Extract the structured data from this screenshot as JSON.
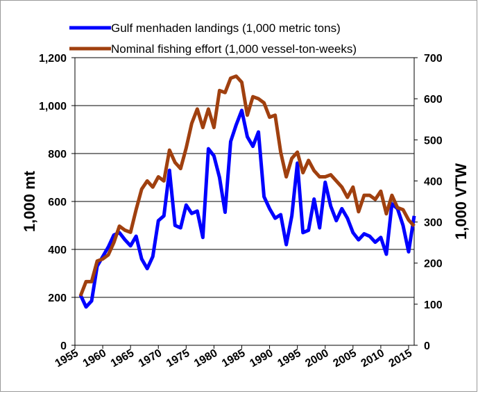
{
  "chart_data": {
    "type": "line",
    "x": [
      1956,
      1957,
      1958,
      1959,
      1960,
      1961,
      1962,
      1963,
      1964,
      1965,
      1966,
      1967,
      1968,
      1969,
      1970,
      1971,
      1972,
      1973,
      1974,
      1975,
      1976,
      1977,
      1978,
      1979,
      1980,
      1981,
      1982,
      1983,
      1984,
      1985,
      1986,
      1987,
      1988,
      1989,
      1990,
      1991,
      1992,
      1993,
      1994,
      1995,
      1996,
      1997,
      1998,
      1999,
      2000,
      2001,
      2002,
      2003,
      2004,
      2005,
      2006,
      2007,
      2008,
      2009,
      2010,
      2011,
      2012,
      2013,
      2014,
      2015,
      2016
    ],
    "series": [
      {
        "name": "Gulf menhaden landings (1,000  metric tons)",
        "color": "#0000ff",
        "values": [
          210,
          160,
          185,
          330,
          370,
          410,
          460,
          470,
          440,
          415,
          455,
          360,
          320,
          370,
          520,
          540,
          730,
          500,
          490,
          585,
          550,
          560,
          450,
          820,
          790,
          700,
          555,
          850,
          920,
          980,
          870,
          830,
          890,
          620,
          570,
          530,
          545,
          420,
          540,
          760,
          470,
          480,
          610,
          490,
          680,
          580,
          520,
          570,
          530,
          470,
          440,
          465,
          455,
          430,
          450,
          380,
          590,
          570,
          500,
          390,
          540
        ]
      },
      {
        "name": "Nominal fishing effort (1,000 vessel-ton-weeks)",
        "color": "#a0400f",
        "axis": "y2",
        "values": [
          120,
          155,
          155,
          205,
          210,
          220,
          250,
          290,
          280,
          275,
          330,
          380,
          400,
          385,
          410,
          400,
          475,
          445,
          430,
          480,
          540,
          575,
          530,
          575,
          530,
          620,
          615,
          650,
          655,
          640,
          560,
          605,
          600,
          590,
          555,
          560,
          470,
          410,
          455,
          470,
          420,
          450,
          425,
          410,
          410,
          415,
          400,
          385,
          360,
          385,
          325,
          365,
          365,
          355,
          375,
          320,
          365,
          335,
          330,
          305,
          290
        ]
      }
    ],
    "xlim": [
      1955,
      2016
    ],
    "xticks": [
      1955,
      1960,
      1965,
      1970,
      1975,
      1980,
      1985,
      1990,
      1995,
      2000,
      2005,
      2010,
      2015
    ],
    "ylim": [
      0,
      1200
    ],
    "yticks": [
      0,
      200,
      400,
      600,
      800,
      {
        "value": 1000,
        "label": "1,000"
      },
      {
        "value": 1200,
        "label": "1,200"
      }
    ],
    "y2lim": [
      0,
      700
    ],
    "y2ticks": [
      0,
      100,
      200,
      300,
      400,
      500,
      600,
      700
    ],
    "ylabel": "1,000 mt",
    "y2label": "1,000 VTW",
    "grid": true
  }
}
